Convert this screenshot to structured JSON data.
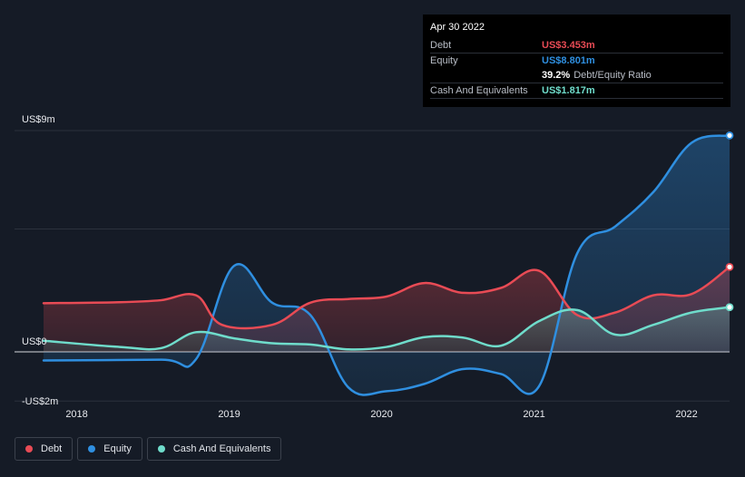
{
  "colors": {
    "debt": "#e84b55",
    "equity": "#2f8fe0",
    "cash": "#6fdccb",
    "grid": "#2b313c",
    "zero": "#d6d9de"
  },
  "tooltip": {
    "date": "Apr 30 2022",
    "debt_label": "Debt",
    "debt_value": "US$3.453m",
    "equity_label": "Equity",
    "equity_value": "US$8.801m",
    "ratio_pct": "39.2%",
    "ratio_label": "Debt/Equity Ratio",
    "cash_label": "Cash And Equivalents",
    "cash_value": "US$1.817m"
  },
  "legend": [
    {
      "label": "Debt",
      "color": "#e84b55"
    },
    {
      "label": "Equity",
      "color": "#2f8fe0"
    },
    {
      "label": "Cash And Equivalents",
      "color": "#6fdccb"
    }
  ],
  "chart_data": {
    "type": "area",
    "title": "",
    "xlabel": "",
    "ylabel": "",
    "ylim": [
      -2,
      9
    ],
    "xlim": [
      2017.83,
      2022.33
    ],
    "y_tick_labels": [
      {
        "value": 9,
        "label": "US$9m"
      },
      {
        "value": 0,
        "label": "US$0"
      },
      {
        "value": -2,
        "label": "-US$2m"
      }
    ],
    "gridlines": [
      9,
      5,
      0,
      -2
    ],
    "x_ticks": [
      {
        "value": 2018,
        "label": "2018"
      },
      {
        "value": 2019,
        "label": "2019"
      },
      {
        "value": 2020,
        "label": "2020"
      },
      {
        "value": 2021,
        "label": "2021"
      },
      {
        "value": 2022,
        "label": "2022"
      }
    ],
    "series": [
      {
        "name": "Debt",
        "key": "debt",
        "x": [
          2017.83,
          2018.33,
          2018.6,
          2018.83,
          2019.0,
          2019.33,
          2019.58,
          2019.83,
          2020.08,
          2020.33,
          2020.58,
          2020.83,
          2021.08,
          2021.33,
          2021.58,
          2021.83,
          2022.08,
          2022.33
        ],
        "values": [
          1.98,
          2.02,
          2.1,
          2.3,
          1.1,
          1.1,
          2.0,
          2.15,
          2.25,
          2.8,
          2.4,
          2.6,
          3.3,
          1.5,
          1.6,
          2.3,
          2.35,
          3.453
        ]
      },
      {
        "name": "Equity",
        "key": "equity",
        "x": [
          2017.83,
          2018.6,
          2018.83,
          2019.08,
          2019.33,
          2019.58,
          2019.83,
          2020.08,
          2020.33,
          2020.58,
          2020.83,
          2021.08,
          2021.33,
          2021.58,
          2021.83,
          2022.08,
          2022.33
        ],
        "values": [
          -0.35,
          -0.32,
          -0.3,
          3.5,
          2.0,
          1.5,
          -1.45,
          -1.6,
          -1.3,
          -0.7,
          -0.9,
          -1.4,
          4.0,
          5.1,
          6.5,
          8.5,
          8.801
        ]
      },
      {
        "name": "Cash And Equivalents",
        "key": "cash",
        "x": [
          2017.83,
          2018.33,
          2018.6,
          2018.83,
          2019.08,
          2019.33,
          2019.58,
          2019.83,
          2020.08,
          2020.33,
          2020.58,
          2020.83,
          2021.08,
          2021.33,
          2021.58,
          2021.83,
          2022.08,
          2022.33
        ],
        "values": [
          0.45,
          0.2,
          0.15,
          0.8,
          0.55,
          0.35,
          0.3,
          0.1,
          0.2,
          0.6,
          0.58,
          0.25,
          1.25,
          1.7,
          0.7,
          1.1,
          1.6,
          1.817
        ]
      }
    ]
  }
}
